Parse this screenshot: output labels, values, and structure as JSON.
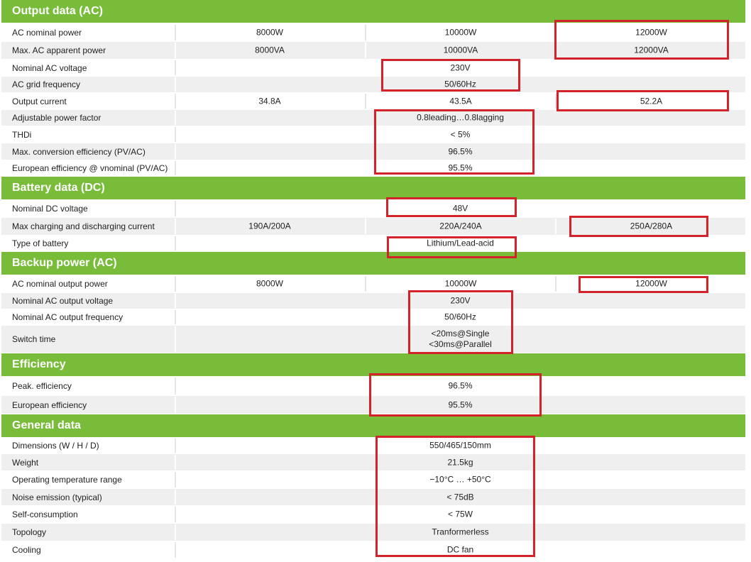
{
  "sections": [
    {
      "id": "output",
      "title": "Output data (AC)",
      "rows": [
        {
          "label": "AC nominal power",
          "values": [
            "8000W",
            "10000W",
            "12000W"
          ]
        },
        {
          "label": "Max. AC apparent power",
          "values": [
            "8000VA",
            "10000VA",
            "12000VA"
          ]
        },
        {
          "label": "Nominal AC voltage",
          "merged": "230V"
        },
        {
          "label": "AC grid frequency",
          "merged": "50/60Hz"
        },
        {
          "label": "Output current",
          "values": [
            "34.8A",
            "43.5A",
            "52.2A"
          ]
        },
        {
          "label": "Adjustable power factor",
          "merged": "0.8leading…0.8lagging"
        },
        {
          "label": "THDi",
          "merged": "< 5%"
        },
        {
          "label": "Max. conversion efficiency (PV/AC)",
          "merged": "96.5%"
        },
        {
          "label": "European efficiency @ vnominal (PV/AC)",
          "merged": "95.5%"
        }
      ]
    },
    {
      "id": "battery",
      "title": "Battery data (DC)",
      "rows": [
        {
          "label": "Nominal DC voltage",
          "merged": "48V"
        },
        {
          "label": "Max charging and discharging current",
          "values": [
            "190A/200A",
            "220A/240A",
            "250A/280A"
          ]
        },
        {
          "label": "Type of battery",
          "merged": "Lithium/Lead-acid"
        }
      ]
    },
    {
      "id": "backup",
      "title": "Backup power (AC)",
      "rows": [
        {
          "label": "AC nominal output power",
          "values": [
            "8000W",
            "10000W",
            "12000W"
          ]
        },
        {
          "label": "Nominal AC output voltage",
          "merged": "230V"
        },
        {
          "label": "Nominal AC output frequency",
          "merged": "50/60Hz"
        },
        {
          "label": "Switch time",
          "merged_lines": [
            "<20ms@Single",
            "<30ms@Parallel"
          ]
        }
      ]
    },
    {
      "id": "efficiency",
      "title": "Efficiency",
      "rows": [
        {
          "label": "Peak. efficiency",
          "merged": "96.5%"
        },
        {
          "label": "European efficiency",
          "merged": "95.5%"
        }
      ]
    },
    {
      "id": "general",
      "title": "General data",
      "rows": [
        {
          "label": "Dimensions (W / H / D)",
          "merged": "550/465/150mm"
        },
        {
          "label": "Weight",
          "merged": "21.5kg"
        },
        {
          "label": "Operating temperature range",
          "merged": "−10°C … +50°C"
        },
        {
          "label": "Noise emission  (typical)",
          "merged": "< 75dB"
        },
        {
          "label": "Self-consumption",
          "merged": "< 75W"
        },
        {
          "label": "Topology",
          "merged": "Tranformerless"
        },
        {
          "label": "Cooling",
          "merged": "DC fan"
        }
      ]
    }
  ],
  "colors": {
    "section_header": "#78bc3a",
    "row_alternate": "#efefef",
    "highlight_box": "#d3222a"
  }
}
